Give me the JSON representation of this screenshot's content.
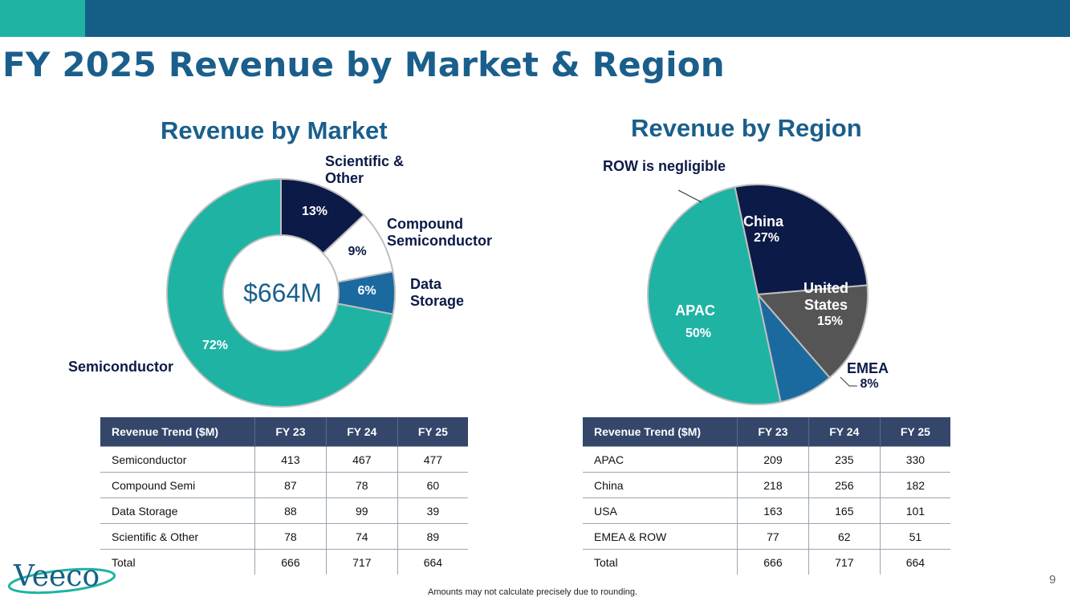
{
  "title": "FY 2025 Revenue by Market & Region",
  "market_title": "Revenue by Market",
  "region_title": "Revenue by Region",
  "colors": {
    "teal": "#1fb3a4",
    "navy": "#0c1a47",
    "blue": "#1a6aa0",
    "gray": "#555555",
    "header": "#34466a"
  },
  "chart_data": [
    {
      "type": "donut",
      "title": "Revenue by Market",
      "center_label": "$664M",
      "categories": [
        "Scientific & Other",
        "Compound Semiconductor",
        "Data Storage",
        "Semiconductor"
      ],
      "display_labels": [
        "Scientific &\nOther",
        "Compound\nSemiconductor",
        "Data\nStorage",
        "Semiconductor"
      ],
      "values": [
        13,
        9,
        6,
        72
      ],
      "value_labels": [
        "13%",
        "9%",
        "6%",
        "72%"
      ],
      "colors": [
        "#0c1a47",
        "#ffffff",
        "#1a6aa0",
        "#1fb3a4"
      ]
    },
    {
      "type": "pie",
      "title": "Revenue by Region",
      "categories": [
        "China",
        "United States",
        "EMEA",
        "APAC",
        "ROW"
      ],
      "display_labels": [
        "China",
        "United\nStates",
        "EMEA",
        "APAC",
        ""
      ],
      "values": [
        27,
        15,
        8,
        50,
        0
      ],
      "value_labels": [
        "27%",
        "15%",
        "8%",
        "50%",
        ""
      ],
      "colors": [
        "#0c1a47",
        "#555555",
        "#1a6aa0",
        "#1fb3a4",
        "#1fb3a4"
      ],
      "annotation": "ROW is negligible"
    },
    {
      "type": "table",
      "title": "Revenue Trend ($M)",
      "columns": [
        "Revenue Trend ($M)",
        "FY 23",
        "FY 24",
        "FY 25"
      ],
      "rows": [
        [
          "Semiconductor",
          "413",
          "467",
          "477"
        ],
        [
          "Compound Semi",
          "87",
          "78",
          "60"
        ],
        [
          "Data Storage",
          "88",
          "99",
          "39"
        ],
        [
          "Scientific & Other",
          "78",
          "74",
          "89"
        ],
        [
          "Total",
          "666",
          "717",
          "664"
        ]
      ]
    },
    {
      "type": "table",
      "title": "Revenue Trend ($M)",
      "columns": [
        "Revenue Trend ($M)",
        "FY 23",
        "FY 24",
        "FY 25"
      ],
      "rows": [
        [
          "APAC",
          "209",
          "235",
          "330"
        ],
        [
          "China",
          "218",
          "256",
          "182"
        ],
        [
          "USA",
          "163",
          "165",
          "101"
        ],
        [
          "EMEA & ROW",
          "77",
          "62",
          "51"
        ],
        [
          "Total",
          "666",
          "717",
          "664"
        ]
      ]
    }
  ],
  "footnote": "Amounts may not calculate precisely due to rounding.",
  "page_number": "9",
  "logo_text": "Veeco"
}
